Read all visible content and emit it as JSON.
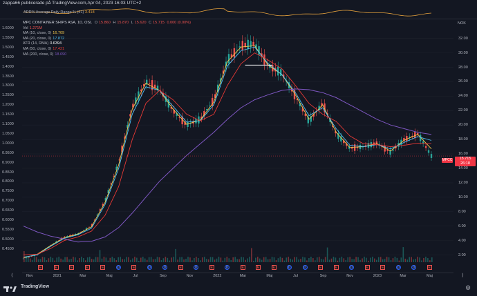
{
  "header": {
    "text": "zappa66 publicerade på TradingView.com,Apr 04, 2023 16:03 UTC+2"
  },
  "adr": {
    "name": "ADR%",
    "label": "Average Daily Range % (21)",
    "value": "3.418"
  },
  "legend": {
    "symbol": "MPC CONTAINER SHIPS ASA, 1D, OSL",
    "o_label": "O",
    "o": "15.860",
    "h_label": "H",
    "h": "15.870",
    "l_label": "L",
    "l": "15.620",
    "c_label": "C",
    "c": "15.715",
    "chg": "0.000 (0.00%)",
    "vol_label": "Vol",
    "vol": "1.271M",
    "ma10_label": "MA (10, close, 0)",
    "ma10": "16.709",
    "ma20_label": "MA (20, close, 0)",
    "ma20": "17.872",
    "atr_label": "ATR (14, RMA)",
    "atr": "0.6394",
    "ma50_label": "MA (50, close, 0)",
    "ma50": "17.421",
    "ma200_label": "MA (200, close, 0)",
    "ma200": "18.690"
  },
  "left_axis": {
    "ticks": [
      "1.6000",
      "1.5500",
      "1.5000",
      "1.4500",
      "1.4000",
      "1.3500",
      "1.3000",
      "1.2500",
      "1.2000",
      "1.1500",
      "1.1000",
      "1.0500",
      "1.0000",
      "0.9500",
      "0.9000",
      "0.8500",
      "0.8000",
      "0.7500",
      "0.7000",
      "0.6500",
      "0.6000",
      "0.5500",
      "0.5000",
      "0.4500"
    ],
    "price_tag": "MPCC"
  },
  "right_axis": {
    "currency": "NOK",
    "ticks": [
      "32.00",
      "30.00",
      "28.00",
      "26.00",
      "24.00",
      "22.00",
      "20.00",
      "18.00",
      "16.00",
      "14.00",
      "12.00",
      "10.00",
      "8.00",
      "6.00",
      "4.00",
      "2.00"
    ],
    "last_price": "15.715",
    "countdown": "26:18"
  },
  "x_axis": {
    "labels": [
      "Nov",
      "2021",
      "Mar",
      "Maj",
      "Jul",
      "Sep",
      "Nov",
      "2022",
      "Mar",
      "Maj",
      "Jul",
      "Sep",
      "Nov",
      "2023",
      "Mar",
      "Maj"
    ]
  },
  "events": [
    "E",
    "E",
    "E",
    "E",
    "E",
    "D",
    "E",
    "D",
    "D",
    "E",
    "D",
    "E",
    "D",
    "E",
    "E",
    "E",
    "D",
    "D",
    "E",
    "E",
    "D",
    "E",
    "E",
    "D",
    "D",
    "E"
  ],
  "footer": {
    "brand": "TradingView"
  },
  "colors": {
    "bg": "#131722",
    "up": "#26a69a",
    "down": "#ef5350",
    "ma10": "#f2c94c",
    "ma20": "#4fc3f7",
    "ma50": "#e53935",
    "ma200": "#7e57c2",
    "adr": "#e6a23c"
  },
  "chart_data": {
    "type": "line",
    "title": "MPC CONTAINER SHIPS ASA, 1D, OSL",
    "ylabel": "NOK",
    "ylim": [
      1.0,
      33.5
    ],
    "x": [
      "Oct 2020",
      "Nov 2020",
      "Dec 2020",
      "Jan 2021",
      "Feb 2021",
      "Mar 2021",
      "Apr 2021",
      "May 2021",
      "Jun 2021",
      "Jul 2021",
      "Aug 2021",
      "Sep 2021",
      "Oct 2021",
      "Nov 2021",
      "Dec 2021",
      "Jan 2022",
      "Feb 2022",
      "Mar 2022",
      "Apr 2022",
      "May 2022",
      "Jun 2022",
      "Jul 2022",
      "Aug 2022",
      "Sep 2022",
      "Oct 2022",
      "Nov 2022",
      "Dec 2022",
      "Jan 2023",
      "Feb 2023",
      "Mar 2023",
      "Apr 2023"
    ],
    "series": [
      {
        "name": "Price",
        "values": [
          1.5,
          2.0,
          3.3,
          4.5,
          4.9,
          6.0,
          9.5,
          14.8,
          22.5,
          26.0,
          25.0,
          22.0,
          20.0,
          20.8,
          23.5,
          29.0,
          31.0,
          31.3,
          28.2,
          27.2,
          24.0,
          20.5,
          23.0,
          18.8,
          16.8,
          17.0,
          17.5,
          16.2,
          18.0,
          18.8,
          15.715
        ]
      },
      {
        "name": "MA (10, close, 0)",
        "values": [
          1.6,
          2.1,
          3.3,
          4.4,
          4.9,
          5.9,
          9.3,
          14.5,
          22.2,
          25.8,
          24.8,
          22.2,
          20.1,
          20.7,
          23.2,
          28.8,
          30.8,
          31.0,
          28.3,
          27.0,
          24.2,
          20.8,
          22.8,
          19.0,
          16.9,
          17.0,
          17.4,
          16.4,
          17.9,
          18.7,
          16.709
        ]
      },
      {
        "name": "MA (20, close, 0)",
        "values": [
          1.7,
          2.0,
          3.2,
          4.3,
          4.8,
          5.7,
          9.0,
          14.0,
          21.5,
          25.3,
          24.8,
          22.6,
          20.4,
          20.6,
          22.8,
          28.2,
          30.3,
          30.8,
          28.5,
          27.0,
          24.5,
          21.3,
          22.4,
          19.5,
          17.2,
          17.0,
          17.3,
          16.7,
          17.6,
          18.4,
          17.872
        ]
      },
      {
        "name": "MA (50, close, 0)",
        "values": [
          2.0,
          2.1,
          2.9,
          4.0,
          4.5,
          5.3,
          7.5,
          11.5,
          18.0,
          23.0,
          24.8,
          23.5,
          21.5,
          20.6,
          21.5,
          25.5,
          28.5,
          30.0,
          29.0,
          27.8,
          25.5,
          23.0,
          21.5,
          20.5,
          18.5,
          17.4,
          17.3,
          17.0,
          17.2,
          17.5,
          17.421
        ]
      },
      {
        "name": "MA (200, close, 0)",
        "values": [
          6.0,
          5.2,
          4.6,
          4.2,
          3.8,
          3.9,
          4.5,
          5.8,
          7.8,
          10.0,
          12.2,
          14.0,
          15.8,
          17.4,
          19.0,
          20.8,
          22.4,
          23.5,
          24.2,
          24.8,
          25.0,
          24.9,
          24.5,
          23.8,
          22.8,
          21.8,
          20.8,
          20.0,
          19.5,
          19.0,
          18.69
        ]
      }
    ],
    "left_ylim": [
      0.42,
      1.63
    ],
    "volume_spikes": "low volume with a few large spikes"
  }
}
